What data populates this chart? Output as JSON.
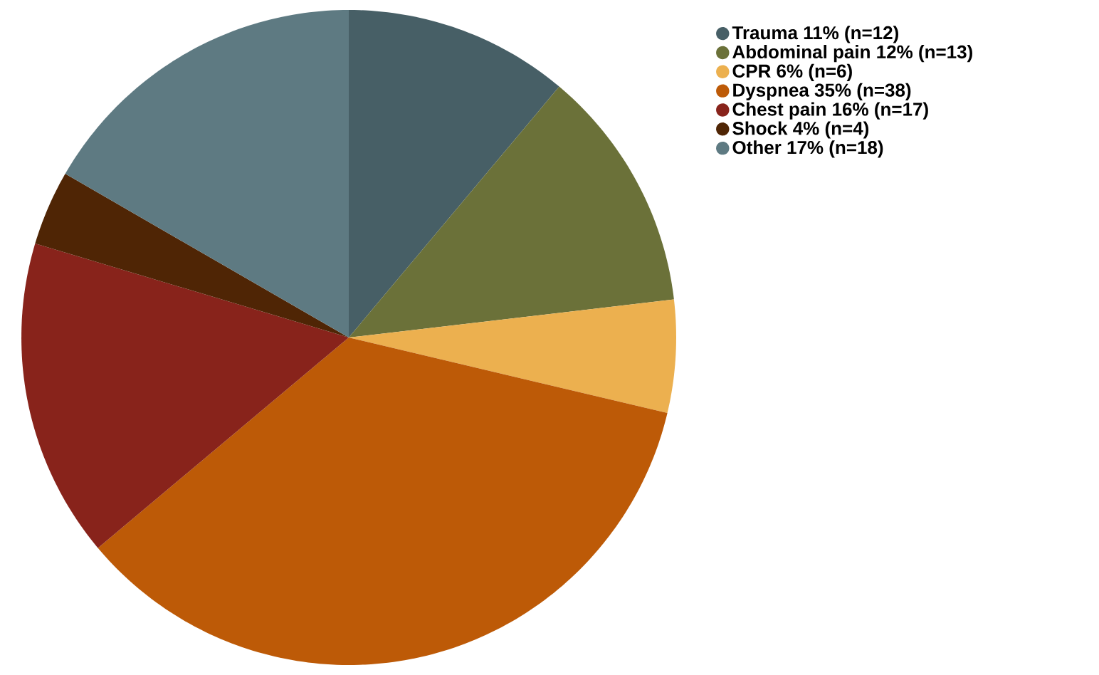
{
  "chart_data": {
    "type": "pie",
    "categories": [
      "Trauma 11% (n=12)",
      "Abdominal pain 12% (n=13)",
      "CPR 6% (n=6)",
      "Dyspnea 35% (n=38)",
      "Chest pain 16% (n=17)",
      "Shock 4% (n=4)",
      "Other 17% (n=18)"
    ],
    "values": [
      12,
      13,
      6,
      38,
      17,
      4,
      18
    ],
    "colors": [
      "#475f66",
      "#6b7139",
      "#ecb04f",
      "#bd5a07",
      "#88231b",
      "#4f2505",
      "#5e7a82"
    ],
    "legend": "top right"
  }
}
